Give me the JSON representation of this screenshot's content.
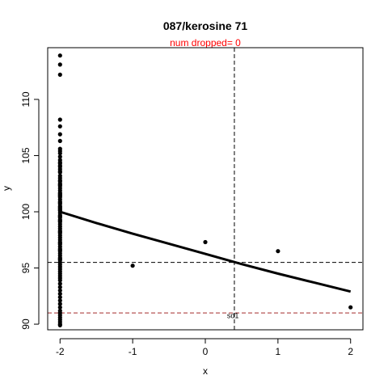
{
  "chart_data": {
    "type": "scatter",
    "title": "087/kerosine 71",
    "subtitle": "num dropped= 0",
    "subtitle_color": "#ff0000",
    "xlabel": "x",
    "ylabel": "y",
    "xlim": [
      -2.17,
      2.17
    ],
    "ylim": [
      89.5,
      114.6
    ],
    "xticks": [
      -2,
      -1,
      0,
      1,
      2
    ],
    "yticks": [
      90,
      95,
      100,
      105,
      110
    ],
    "grid": false,
    "legend": "none",
    "points": {
      "x": [
        -2,
        -2,
        -2,
        -2,
        -2,
        -2,
        -2,
        -2,
        -2,
        -2,
        -2,
        -2,
        -2,
        -2,
        -2,
        -2,
        -2,
        -2,
        -2,
        -2,
        -2,
        -2,
        -2,
        -2,
        -2,
        -2,
        -2,
        -2,
        -2,
        -2,
        -2,
        -2,
        -2,
        -2,
        -2,
        -2,
        -2,
        -2,
        -2,
        -2,
        -2,
        -2,
        -2,
        -2,
        -2,
        -2,
        -2,
        -2,
        -2,
        -2,
        -2,
        -2,
        -2,
        -2,
        -2,
        -2,
        -2,
        -2,
        -2,
        -2,
        -2,
        -2,
        -2,
        -2,
        -2,
        -2,
        -2,
        -2,
        -2,
        -2,
        -2,
        -2,
        -2,
        -2,
        -2,
        -2,
        -2,
        -2,
        -2,
        -2,
        -2,
        -2,
        -2,
        -2,
        -2,
        -2,
        -2,
        -2,
        -2,
        -2,
        -2,
        -2,
        -2,
        -2,
        -2,
        -1,
        0,
        1,
        2
      ],
      "y": [
        113.9,
        113.1,
        112.2,
        108.2,
        107.6,
        106.9,
        106.3,
        105.6,
        105.2,
        104.9,
        104.6,
        104.3,
        104.0,
        103.8,
        103.5,
        103.2,
        103.0,
        102.7,
        102.5,
        102.3,
        102.1,
        101.9,
        101.7,
        101.5,
        101.3,
        101.1,
        100.9,
        100.7,
        100.5,
        100.3,
        100.1,
        99.9,
        99.7,
        99.5,
        99.3,
        99.1,
        98.9,
        98.7,
        98.5,
        98.3,
        98.1,
        97.9,
        97.7,
        97.5,
        97.3,
        97.1,
        96.9,
        96.7,
        96.5,
        96.3,
        96.1,
        95.9,
        95.7,
        95.5,
        95.3,
        95.1,
        94.9,
        94.7,
        94.5,
        94.3,
        94.1,
        93.9,
        93.6,
        93.3,
        93.0,
        92.7,
        92.4,
        92.1,
        91.8,
        91.5,
        91.2,
        91.0,
        90.8,
        90.6,
        90.4,
        90.2,
        90.0,
        89.9,
        99.2,
        100.4,
        100.8,
        101.6,
        102.4,
        103.6,
        104.4,
        95.8,
        96.6,
        97.2,
        98.2,
        99.6,
        100.2,
        101.4,
        102.8,
        104.1,
        105.4,
        95.2,
        97.3,
        96.5,
        91.5
      ]
    },
    "fit_curve": {
      "x": [
        -2,
        -1.5,
        -1,
        -0.5,
        0,
        0.5,
        1,
        1.5,
        2
      ],
      "y": [
        100.0,
        99.0,
        98.05,
        97.15,
        96.25,
        95.35,
        94.5,
        93.7,
        92.9
      ]
    },
    "vline": {
      "x": 0.4,
      "style": "dashed",
      "color": "#000000"
    },
    "hline": {
      "y": 95.5,
      "style": "dashed",
      "color": "#000000"
    },
    "hline_red": {
      "y": 91.0,
      "style": "dashed",
      "color": "#a52a2a"
    },
    "annotation": {
      "text": "sd1",
      "x": 0.38,
      "y": 90.9
    }
  }
}
